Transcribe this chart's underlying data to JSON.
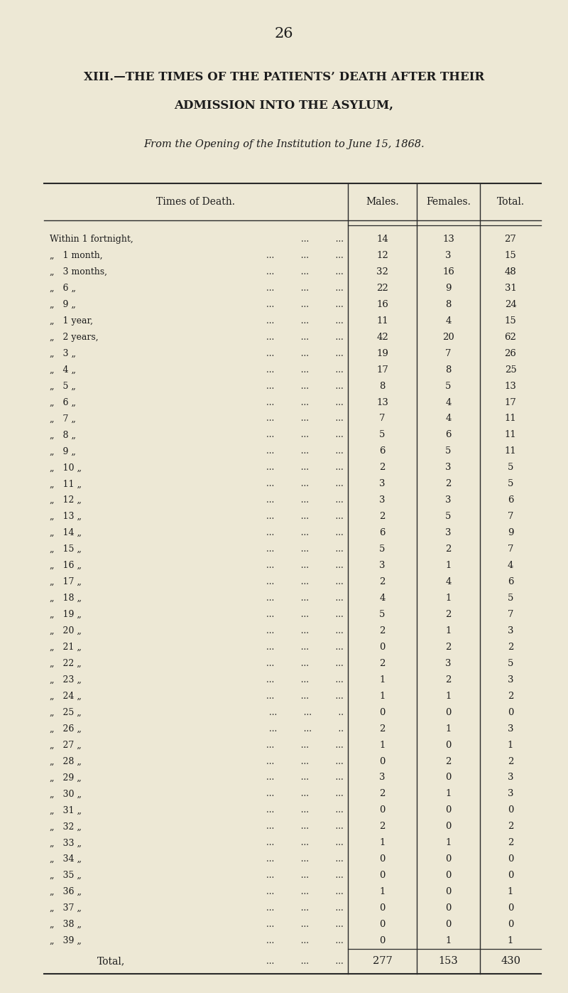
{
  "page_number": "26",
  "title_line1": "XIII.—THE TIMES OF THE PATIENTS’ DEATH AFTER THEIR",
  "title_line2": "ADMISSION INTO THE ASYLUM,",
  "subtitle": "From the Opening of the Institution to June 15, 1868.",
  "col_header_time": "Times of Death.",
  "col_header_males": "Males.",
  "col_header_females": "Females.",
  "col_header_total": "Total.",
  "background_color": "#ede8d5",
  "text_color": "#1c1c1c",
  "rows": [
    {
      "label_main": "Within 1 fortnight,",
      "label_suffix": "...          ...",
      "males": 14,
      "females": 13,
      "total": 27
    },
    {
      "„label_main": "„   1 month,",
      "label_main": "„   1 month,",
      "label_suffix": "...          ...          ...",
      "males": 12,
      "females": 3,
      "total": 15
    },
    {
      "label_main": "„   3 months,",
      "label_suffix": "...          ...          ...",
      "males": 32,
      "females": 16,
      "total": 48
    },
    {
      "label_main": "„   6 „",
      "label_suffix": "...          ...          ...",
      "males": 22,
      "females": 9,
      "total": 31
    },
    {
      "label_main": "„   9 „",
      "label_suffix": "...          ...          ...",
      "males": 16,
      "females": 8,
      "total": 24
    },
    {
      "label_main": "„   1 year,",
      "label_suffix": "...          ...          ...",
      "males": 11,
      "females": 4,
      "total": 15
    },
    {
      "label_main": "„   2 years,",
      "label_suffix": "...          ...          ...",
      "males": 42,
      "females": 20,
      "total": 62
    },
    {
      "label_main": "„   3 „",
      "label_suffix": "...          ...          ...",
      "males": 19,
      "females": 7,
      "total": 26
    },
    {
      "label_main": "„   4 „",
      "label_suffix": "...          ...          ...",
      "males": 17,
      "females": 8,
      "total": 25
    },
    {
      "label_main": "„   5 „",
      "label_suffix": "...          ...          ...",
      "males": 8,
      "females": 5,
      "total": 13
    },
    {
      "label_main": "„   6 „",
      "label_suffix": "...          ...          ...",
      "males": 13,
      "females": 4,
      "total": 17
    },
    {
      "label_main": "„   7 „",
      "label_suffix": "...          ...          ...",
      "males": 7,
      "females": 4,
      "total": 11
    },
    {
      "label_main": "„   8 „",
      "label_suffix": "...          ...          ...",
      "males": 5,
      "females": 6,
      "total": 11
    },
    {
      "label_main": "„   9 „",
      "label_suffix": "...          ...          ...",
      "males": 6,
      "females": 5,
      "total": 11
    },
    {
      "label_main": "„   10 „",
      "label_suffix": "...          ...          ...",
      "males": 2,
      "females": 3,
      "total": 5
    },
    {
      "label_main": "„   11 „",
      "label_suffix": "...          ...          ...",
      "males": 3,
      "females": 2,
      "total": 5
    },
    {
      "label_main": "„   12 „",
      "label_suffix": "...          ...          ...",
      "males": 3,
      "females": 3,
      "total": 6
    },
    {
      "label_main": "„   13 „",
      "label_suffix": "...          ...          ...",
      "males": 2,
      "females": 5,
      "total": 7
    },
    {
      "label_main": "„   14 „",
      "label_suffix": "...          ...          ...",
      "males": 6,
      "females": 3,
      "total": 9
    },
    {
      "label_main": "„   15 „",
      "label_suffix": "...          ...          ...",
      "males": 5,
      "females": 2,
      "total": 7
    },
    {
      "label_main": "„   16 „",
      "label_suffix": "...          ...          ...",
      "males": 3,
      "females": 1,
      "total": 4
    },
    {
      "label_main": "„   17 „",
      "label_suffix": "...          ...          ...",
      "males": 2,
      "females": 4,
      "total": 6
    },
    {
      "label_main": "„   18 „",
      "label_suffix": "...          ...          ...",
      "males": 4,
      "females": 1,
      "total": 5
    },
    {
      "label_main": "„   19 „",
      "label_suffix": "...          ...          ...",
      "males": 5,
      "females": 2,
      "total": 7
    },
    {
      "label_main": "„   20 „",
      "label_suffix": "...          ...          ...",
      "males": 2,
      "females": 1,
      "total": 3
    },
    {
      "label_main": "„   21 „",
      "label_suffix": "...          ...          ...",
      "males": 0,
      "females": 2,
      "total": 2
    },
    {
      "label_main": "„   22 „",
      "label_suffix": "...          ...          ...",
      "males": 2,
      "females": 3,
      "total": 5
    },
    {
      "label_main": "„   23 „",
      "label_suffix": "...          ...          ...",
      "males": 1,
      "females": 2,
      "total": 3
    },
    {
      "label_main": "„   24 „",
      "label_suffix": "...          ...          ...",
      "males": 1,
      "females": 1,
      "total": 2
    },
    {
      "label_main": "„   25 „",
      "label_suffix": "...          ...          ..",
      "males": 0,
      "females": 0,
      "total": 0
    },
    {
      "label_main": "„   26 „",
      "label_suffix": "...          ...          ..",
      "males": 2,
      "females": 1,
      "total": 3
    },
    {
      "label_main": "„   27 „",
      "label_suffix": "...          ...          ...",
      "males": 1,
      "females": 0,
      "total": 1
    },
    {
      "label_main": "„   28 „",
      "label_suffix": "...          ...          ...",
      "males": 0,
      "females": 2,
      "total": 2
    },
    {
      "label_main": "„   29 „",
      "label_suffix": "...          ...          ...",
      "males": 3,
      "females": 0,
      "total": 3
    },
    {
      "label_main": "„   30 „",
      "label_suffix": "...          ...          ...",
      "males": 2,
      "females": 1,
      "total": 3
    },
    {
      "label_main": "„   31 „",
      "label_suffix": "...          ...          ...",
      "males": 0,
      "females": 0,
      "total": 0
    },
    {
      "label_main": "„   32 „",
      "label_suffix": "...          ...          ...",
      "males": 2,
      "females": 0,
      "total": 2
    },
    {
      "label_main": "„   33 „",
      "label_suffix": "...          ...          ...",
      "males": 1,
      "females": 1,
      "total": 2
    },
    {
      "label_main": "„   34 „",
      "label_suffix": "...          ...          ...",
      "males": 0,
      "females": 0,
      "total": 0
    },
    {
      "label_main": "„   35 „",
      "label_suffix": "...          ...          ...",
      "males": 0,
      "females": 0,
      "total": 0
    },
    {
      "label_main": "„   36 „",
      "label_suffix": "...          ...          ...",
      "males": 1,
      "females": 0,
      "total": 1
    },
    {
      "label_main": "„   37 „",
      "label_suffix": "...          ...          ...",
      "males": 0,
      "females": 0,
      "total": 0
    },
    {
      "label_main": "„   38 „",
      "label_suffix": "...          ...          ...",
      "males": 0,
      "females": 0,
      "total": 0
    },
    {
      "label_main": "„   39 „",
      "label_suffix": "...          ...          ...",
      "males": 0,
      "females": 1,
      "total": 1
    }
  ],
  "total_males": 277,
  "total_females": 153,
  "total_total": 430
}
